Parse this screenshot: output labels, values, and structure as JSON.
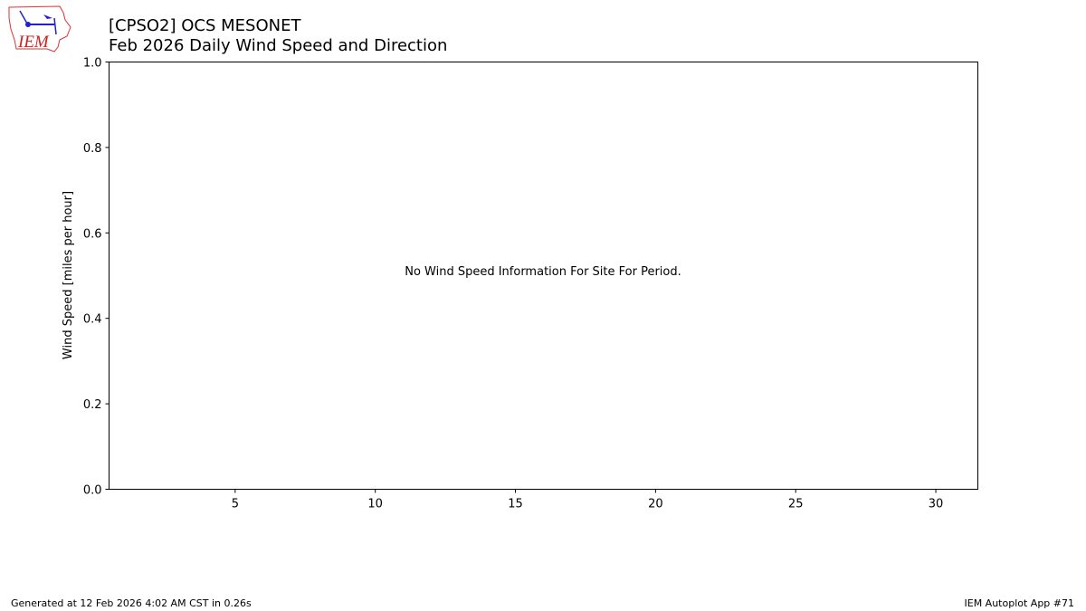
{
  "title_line1": "[CPSO2] OCS MESONET",
  "title_line2": "Feb 2026 Daily Wind Speed and Direction",
  "logo_text": "IEM",
  "footer_left": "Generated at 12 Feb 2026 4:02 AM CST in 0.26s",
  "footer_right": "IEM Autoplot App #71",
  "chart_data": {
    "type": "bar",
    "title": "[CPSO2] OCS MESONET Feb 2026 Daily Wind Speed and Direction",
    "xlabel": "",
    "ylabel": "Wind Speed [miles per hour]",
    "xlim": [
      0.5,
      31.5
    ],
    "ylim": [
      0,
      1
    ],
    "xticks": [
      5,
      10,
      15,
      20,
      25,
      30
    ],
    "yticks": [
      "0.0",
      "0.2",
      "0.4",
      "0.6",
      "0.8",
      "1.0"
    ],
    "annotation": "No Wind Speed Information For Site For Period.",
    "series": [],
    "grid": false
  }
}
